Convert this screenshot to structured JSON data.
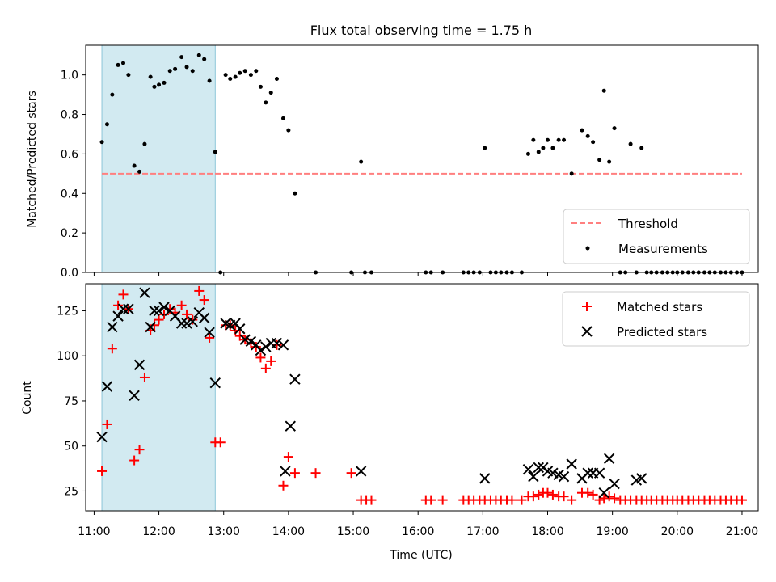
{
  "chart_data": [
    {
      "type": "scatter",
      "title": "Flux total observing time = 1.75 h",
      "xlabel": "",
      "ylabel": "Matched/Predicted stars",
      "xlim": [
        10.87,
        21.25
      ],
      "ylim": [
        0,
        1.15
      ],
      "yticks": [
        0.0,
        0.2,
        0.4,
        0.6,
        0.8,
        1.0
      ],
      "ytick_labels": [
        "0.0",
        "0.2",
        "0.4",
        "0.6",
        "0.8",
        "1.0"
      ],
      "xticks": [
        11,
        12,
        13,
        14,
        15,
        16,
        17,
        18,
        19,
        20,
        21
      ],
      "shaded_region": {
        "x0": 11.12,
        "x1": 12.87,
        "color": "#add8e6"
      },
      "threshold": {
        "name": "Threshold",
        "value": 0.5,
        "x0": 11.12,
        "x1": 21.0,
        "color": "#ff7f7f"
      },
      "legend": {
        "position": "lower-right",
        "entries": [
          "Threshold",
          "Measurements"
        ]
      },
      "series": [
        {
          "name": "Measurements",
          "color": "#000000",
          "points": [
            [
              11.12,
              0.66
            ],
            [
              11.2,
              0.75
            ],
            [
              11.28,
              0.9
            ],
            [
              11.37,
              1.05
            ],
            [
              11.45,
              1.06
            ],
            [
              11.53,
              1.0
            ],
            [
              11.62,
              0.54
            ],
            [
              11.7,
              0.51
            ],
            [
              11.78,
              0.65
            ],
            [
              11.87,
              0.99
            ],
            [
              11.93,
              0.94
            ],
            [
              12.0,
              0.95
            ],
            [
              12.08,
              0.96
            ],
            [
              12.17,
              1.02
            ],
            [
              12.25,
              1.03
            ],
            [
              12.35,
              1.09
            ],
            [
              12.43,
              1.04
            ],
            [
              12.52,
              1.02
            ],
            [
              12.62,
              1.1
            ],
            [
              12.7,
              1.08
            ],
            [
              12.78,
              0.97
            ],
            [
              12.87,
              0.61
            ],
            [
              12.95,
              0.0
            ],
            [
              13.03,
              1.0
            ],
            [
              13.1,
              0.98
            ],
            [
              13.18,
              0.99
            ],
            [
              13.25,
              1.01
            ],
            [
              13.33,
              1.02
            ],
            [
              13.42,
              1.0
            ],
            [
              13.5,
              1.02
            ],
            [
              13.57,
              0.94
            ],
            [
              13.65,
              0.86
            ],
            [
              13.73,
              0.91
            ],
            [
              13.82,
              0.98
            ],
            [
              13.92,
              0.78
            ],
            [
              14.0,
              0.72
            ],
            [
              14.1,
              0.4
            ],
            [
              14.42,
              0.0
            ],
            [
              14.97,
              0.0
            ],
            [
              15.12,
              0.56
            ],
            [
              15.18,
              0.0
            ],
            [
              15.28,
              0.0
            ],
            [
              16.12,
              0.0
            ],
            [
              16.2,
              0.0
            ],
            [
              16.38,
              0.0
            ],
            [
              16.7,
              0.0
            ],
            [
              16.78,
              0.0
            ],
            [
              16.86,
              0.0
            ],
            [
              16.95,
              0.0
            ],
            [
              17.03,
              0.63
            ],
            [
              17.12,
              0.0
            ],
            [
              17.2,
              0.0
            ],
            [
              17.28,
              0.0
            ],
            [
              17.37,
              0.0
            ],
            [
              17.45,
              0.0
            ],
            [
              17.6,
              0.0
            ],
            [
              17.7,
              0.6
            ],
            [
              17.78,
              0.67
            ],
            [
              17.86,
              0.61
            ],
            [
              17.93,
              0.63
            ],
            [
              18.0,
              0.67
            ],
            [
              18.08,
              0.63
            ],
            [
              18.17,
              0.67
            ],
            [
              18.25,
              0.67
            ],
            [
              18.37,
              0.5
            ],
            [
              18.53,
              0.72
            ],
            [
              18.62,
              0.69
            ],
            [
              18.7,
              0.66
            ],
            [
              18.8,
              0.57
            ],
            [
              18.87,
              0.92
            ],
            [
              18.95,
              0.56
            ],
            [
              19.03,
              0.73
            ],
            [
              19.12,
              0.0
            ],
            [
              19.2,
              0.0
            ],
            [
              19.28,
              0.65
            ],
            [
              19.37,
              0.0
            ],
            [
              19.45,
              0.63
            ],
            [
              19.53,
              0.0
            ],
            [
              19.6,
              0.0
            ],
            [
              19.68,
              0.0
            ],
            [
              19.77,
              0.0
            ],
            [
              19.85,
              0.0
            ],
            [
              19.93,
              0.0
            ],
            [
              20.0,
              0.0
            ],
            [
              20.08,
              0.0
            ],
            [
              20.17,
              0.0
            ],
            [
              20.25,
              0.0
            ],
            [
              20.33,
              0.0
            ],
            [
              20.42,
              0.0
            ],
            [
              20.5,
              0.0
            ],
            [
              20.58,
              0.0
            ],
            [
              20.67,
              0.0
            ],
            [
              20.75,
              0.0
            ],
            [
              20.83,
              0.0
            ],
            [
              20.92,
              0.0
            ],
            [
              21.0,
              0.0
            ]
          ]
        }
      ]
    },
    {
      "type": "scatter",
      "title": "",
      "xlabel": "Time (UTC)",
      "ylabel": "Count",
      "xlim": [
        10.87,
        21.25
      ],
      "ylim": [
        14,
        140
      ],
      "yticks": [
        25,
        50,
        75,
        100,
        125
      ],
      "ytick_labels": [
        "25",
        "50",
        "75",
        "100",
        "125"
      ],
      "xticks": [
        11,
        12,
        13,
        14,
        15,
        16,
        17,
        18,
        19,
        20,
        21
      ],
      "xtick_labels": [
        "11:00",
        "12:00",
        "13:00",
        "14:00",
        "15:00",
        "16:00",
        "17:00",
        "18:00",
        "19:00",
        "20:00",
        "21:00"
      ],
      "shaded_region": {
        "x0": 11.12,
        "x1": 12.87,
        "color": "#add8e6"
      },
      "legend": {
        "position": "top-right",
        "entries": [
          "Matched stars",
          "Predicted stars"
        ]
      },
      "series": [
        {
          "name": "Matched stars",
          "marker": "plus",
          "color": "#ff0000",
          "points": [
            [
              11.12,
              36
            ],
            [
              11.2,
              62
            ],
            [
              11.28,
              104
            ],
            [
              11.37,
              128
            ],
            [
              11.45,
              134
            ],
            [
              11.53,
              126
            ],
            [
              11.62,
              42
            ],
            [
              11.7,
              48
            ],
            [
              11.78,
              88
            ],
            [
              11.87,
              114
            ],
            [
              11.93,
              117
            ],
            [
              12.0,
              120
            ],
            [
              12.08,
              123
            ],
            [
              12.17,
              126
            ],
            [
              12.25,
              124
            ],
            [
              12.35,
              128
            ],
            [
              12.43,
              123
            ],
            [
              12.52,
              120
            ],
            [
              12.62,
              136
            ],
            [
              12.7,
              131
            ],
            [
              12.78,
              110
            ],
            [
              12.87,
              52
            ],
            [
              12.95,
              52
            ],
            [
              13.03,
              117
            ],
            [
              13.1,
              117
            ],
            [
              13.18,
              114
            ],
            [
              13.25,
              111
            ],
            [
              13.33,
              109
            ],
            [
              13.42,
              107
            ],
            [
              13.5,
              105
            ],
            [
              13.57,
              99
            ],
            [
              13.65,
              93
            ],
            [
              13.73,
              97
            ],
            [
              13.82,
              106
            ],
            [
              13.92,
              28
            ],
            [
              14.0,
              44
            ],
            [
              14.1,
              35
            ],
            [
              14.42,
              35
            ],
            [
              14.97,
              35
            ],
            [
              15.12,
              20
            ],
            [
              15.2,
              20
            ],
            [
              15.28,
              20
            ],
            [
              16.12,
              20
            ],
            [
              16.2,
              20
            ],
            [
              16.38,
              20
            ],
            [
              16.7,
              20
            ],
            [
              16.78,
              20
            ],
            [
              16.86,
              20
            ],
            [
              16.95,
              20
            ],
            [
              17.03,
              20
            ],
            [
              17.12,
              20
            ],
            [
              17.2,
              20
            ],
            [
              17.28,
              20
            ],
            [
              17.37,
              20
            ],
            [
              17.45,
              20
            ],
            [
              17.6,
              20
            ],
            [
              17.7,
              22
            ],
            [
              17.78,
              22
            ],
            [
              17.86,
              23
            ],
            [
              17.93,
              24
            ],
            [
              18.0,
              24
            ],
            [
              18.08,
              23
            ],
            [
              18.17,
              22
            ],
            [
              18.25,
              22
            ],
            [
              18.37,
              20
            ],
            [
              18.53,
              24
            ],
            [
              18.62,
              24
            ],
            [
              18.7,
              23
            ],
            [
              18.8,
              20
            ],
            [
              18.87,
              21
            ],
            [
              18.95,
              22
            ],
            [
              19.03,
              21
            ],
            [
              19.12,
              20
            ],
            [
              19.2,
              20
            ],
            [
              19.28,
              20
            ],
            [
              19.37,
              20
            ],
            [
              19.45,
              20
            ],
            [
              19.53,
              20
            ],
            [
              19.6,
              20
            ],
            [
              19.68,
              20
            ],
            [
              19.77,
              20
            ],
            [
              19.85,
              20
            ],
            [
              19.93,
              20
            ],
            [
              20.0,
              20
            ],
            [
              20.08,
              20
            ],
            [
              20.17,
              20
            ],
            [
              20.25,
              20
            ],
            [
              20.33,
              20
            ],
            [
              20.42,
              20
            ],
            [
              20.5,
              20
            ],
            [
              20.58,
              20
            ],
            [
              20.67,
              20
            ],
            [
              20.75,
              20
            ],
            [
              20.83,
              20
            ],
            [
              20.92,
              20
            ],
            [
              21.0,
              20
            ]
          ]
        },
        {
          "name": "Predicted stars",
          "marker": "x",
          "color": "#000000",
          "points": [
            [
              11.12,
              55
            ],
            [
              11.2,
              83
            ],
            [
              11.28,
              116
            ],
            [
              11.37,
              122
            ],
            [
              11.45,
              126
            ],
            [
              11.53,
              126
            ],
            [
              11.62,
              78
            ],
            [
              11.7,
              95
            ],
            [
              11.78,
              135
            ],
            [
              11.87,
              116
            ],
            [
              11.93,
              125
            ],
            [
              12.0,
              125
            ],
            [
              12.08,
              127
            ],
            [
              12.17,
              125
            ],
            [
              12.25,
              122
            ],
            [
              12.35,
              118
            ],
            [
              12.43,
              118
            ],
            [
              12.52,
              119
            ],
            [
              12.62,
              124
            ],
            [
              12.7,
              121
            ],
            [
              12.78,
              113
            ],
            [
              12.87,
              85
            ],
            [
              13.03,
              118
            ],
            [
              13.1,
              117
            ],
            [
              13.18,
              118
            ],
            [
              13.25,
              115
            ],
            [
              13.33,
              109
            ],
            [
              13.42,
              108
            ],
            [
              13.5,
              106
            ],
            [
              13.57,
              103
            ],
            [
              13.65,
              105
            ],
            [
              13.73,
              107
            ],
            [
              13.82,
              107
            ],
            [
              13.92,
              106
            ],
            [
              13.95,
              36
            ],
            [
              14.03,
              61
            ],
            [
              14.1,
              87
            ],
            [
              15.12,
              36
            ],
            [
              17.03,
              32
            ],
            [
              17.7,
              37
            ],
            [
              17.78,
              33
            ],
            [
              17.86,
              38
            ],
            [
              17.93,
              38
            ],
            [
              18.0,
              36
            ],
            [
              18.08,
              35
            ],
            [
              18.17,
              34
            ],
            [
              18.25,
              33
            ],
            [
              18.37,
              40
            ],
            [
              18.53,
              32
            ],
            [
              18.62,
              35
            ],
            [
              18.7,
              35
            ],
            [
              18.8,
              35
            ],
            [
              18.87,
              24
            ],
            [
              18.95,
              43
            ],
            [
              19.03,
              29
            ],
            [
              19.37,
              31
            ],
            [
              19.45,
              32
            ]
          ]
        }
      ]
    }
  ]
}
